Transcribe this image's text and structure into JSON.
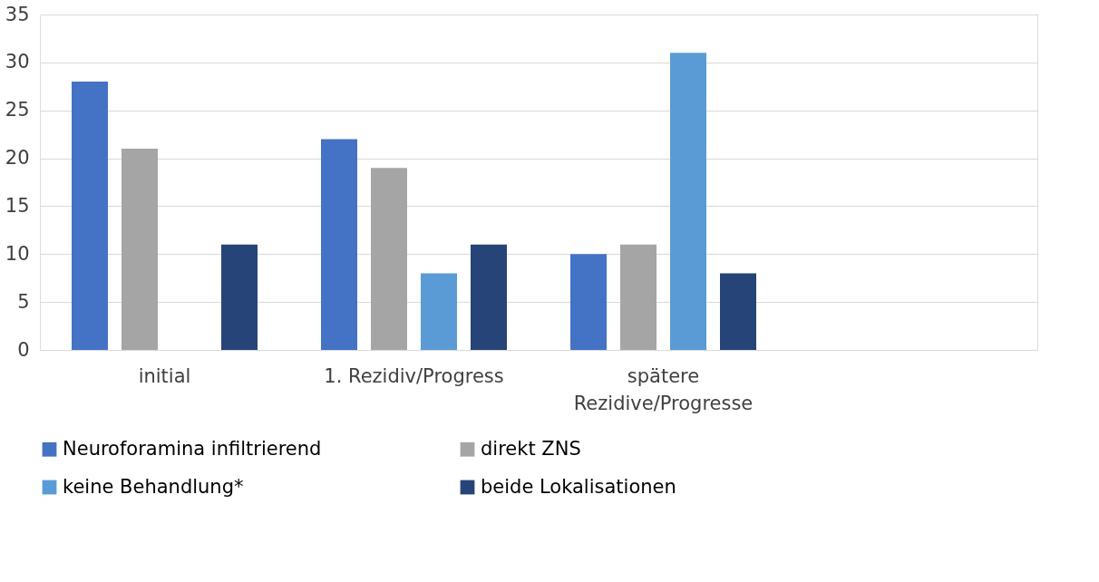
{
  "chart_data": {
    "type": "bar",
    "categories": [
      "initial",
      "1. Rezidiv/Progress",
      "spätere Rezidive/Progresse",
      null
    ],
    "series": [
      {
        "name": "Neuroforamina infiltrierend",
        "color": "#4472c4",
        "values": [
          28,
          22,
          10,
          null
        ]
      },
      {
        "name": "direkt ZNS",
        "color": "#a5a5a5",
        "values": [
          21,
          19,
          11,
          null
        ]
      },
      {
        "name": "keine Behandlung*",
        "color": "#5b9bd5",
        "values": [
          null,
          8,
          31,
          null
        ]
      },
      {
        "name": "beide Lokalisationen",
        "color": "#264478",
        "values": [
          11,
          11,
          8,
          null
        ]
      }
    ],
    "ylim": [
      0,
      35
    ],
    "yticks": [
      0,
      5,
      10,
      15,
      20,
      25,
      30,
      35
    ],
    "grid": "y",
    "legend": "bottom"
  }
}
